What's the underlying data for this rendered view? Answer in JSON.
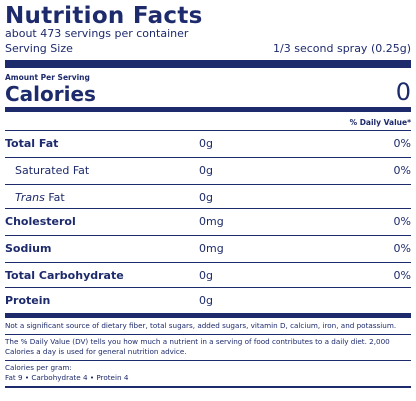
{
  "label": {
    "title": "Nutrition Facts",
    "servings": "about 473 servings per container",
    "serving_size_label": "Serving Size",
    "serving_size_value": "1/3 second spray (0.25g)",
    "amount_per_serving": "Amount Per Serving",
    "calories_label": "Calories",
    "calories_value": "0",
    "daily_value_header": "% Daily Value*"
  },
  "nutrients": [
    {
      "name": "Total Fat",
      "amount": "0g",
      "dv": "0%"
    },
    {
      "name": "Saturated Fat",
      "amount": "0g",
      "dv": "0%"
    },
    {
      "name_italic": "Trans",
      "name_rest": " Fat",
      "amount": "0g",
      "dv": ""
    },
    {
      "name": "Cholesterol",
      "amount": "0mg",
      "dv": "0%"
    },
    {
      "name": "Sodium",
      "amount": "0mg",
      "dv": "0%"
    },
    {
      "name": "Total Carbohydrate",
      "amount": "0g",
      "dv": "0%"
    },
    {
      "name": "Protein",
      "amount": "0g",
      "dv": ""
    }
  ],
  "footnotes": {
    "not_significant": "Not a significant source of dietary fiber, total sugars, added sugars, vitamin D, calcium, iron, and potassium.",
    "daily_value_note": "The % Daily Value (DV) tells you how much a nutrient in a serving of food contributes to a daily diet. 2,000 Calories a day is used for general nutrition advice.",
    "calories_per_gram_label": "Calories per gram:",
    "calories_per_gram_values": "Fat 9 • Carbohydrate 4 • Protein 4"
  },
  "colors": {
    "ink": "#1d2a6b"
  }
}
